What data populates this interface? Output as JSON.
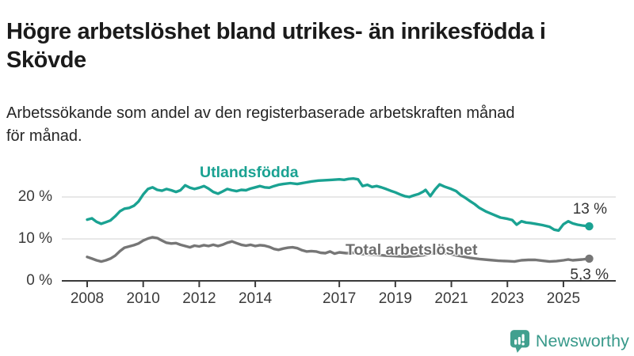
{
  "page": {
    "title": "Högre arbetslöshet bland utrikes- än inrikesfödda i\nSkövde",
    "subtitle": "Arbetssökande som andel av den registerbaserade arbetskraften månad\nför månad."
  },
  "logo": {
    "text": "Newsworthy",
    "icon": "newsworthy-speech-bubble-bar-chart-icon"
  },
  "colors": {
    "accent_teal": "#1aa292",
    "series_gray": "#767676",
    "gray_label": "#6d6d6d",
    "value_label": "#333333",
    "axis": "#3a3a3a",
    "grid": "#d9d9d9",
    "logo_teal": "#41a08f",
    "logo_text_teal": "#38998a"
  },
  "chart_data": {
    "type": "line",
    "title": "Högre arbetslöshet bland utrikes- än inrikesfödda i Skövde",
    "subtitle": "Arbetssökande som andel av den registerbaserade arbetskraften månad för månad.",
    "unit": "%",
    "grid": "horizontal",
    "legend_position": "inline-labels-on-lines",
    "x_range": [
      2008,
      2026
    ],
    "ylim": [
      0,
      26
    ],
    "y_axis": {
      "ticks": [
        {
          "value": 0,
          "label": "0 %"
        },
        {
          "value": 10,
          "label": "10 %"
        },
        {
          "value": 20,
          "label": "20 %"
        }
      ]
    },
    "x_axis": {
      "ticks": [
        {
          "year": 2008,
          "label": "2008"
        },
        {
          "year": 2010,
          "label": "2010"
        },
        {
          "year": 2012,
          "label": "2012"
        },
        {
          "year": 2014,
          "label": "2014"
        },
        {
          "year": 2017,
          "label": "2017"
        },
        {
          "year": 2019,
          "label": "2019"
        },
        {
          "year": 2021,
          "label": "2021"
        },
        {
          "year": 2023,
          "label": "2023"
        },
        {
          "year": 2025,
          "label": "2025"
        }
      ]
    },
    "series": [
      {
        "name": "Utlandsfödda",
        "slug": "utlandsfodda",
        "color": "#1aa292",
        "label_color": "#1aa292",
        "end_label": "13 %",
        "end_value": 13.0,
        "points": [
          [
            2008.0,
            14.6
          ],
          [
            2008.17,
            14.9
          ],
          [
            2008.33,
            14.1
          ],
          [
            2008.5,
            13.6
          ],
          [
            2008.67,
            14.0
          ],
          [
            2008.83,
            14.4
          ],
          [
            2009.0,
            15.4
          ],
          [
            2009.17,
            16.6
          ],
          [
            2009.33,
            17.2
          ],
          [
            2009.5,
            17.4
          ],
          [
            2009.67,
            17.9
          ],
          [
            2009.83,
            18.9
          ],
          [
            2010.0,
            20.6
          ],
          [
            2010.17,
            21.9
          ],
          [
            2010.33,
            22.3
          ],
          [
            2010.5,
            21.7
          ],
          [
            2010.67,
            21.5
          ],
          [
            2010.83,
            21.9
          ],
          [
            2011.0,
            21.6
          ],
          [
            2011.17,
            21.2
          ],
          [
            2011.33,
            21.6
          ],
          [
            2011.5,
            22.8
          ],
          [
            2011.67,
            22.2
          ],
          [
            2011.83,
            21.9
          ],
          [
            2012.0,
            22.2
          ],
          [
            2012.17,
            22.6
          ],
          [
            2012.33,
            22.0
          ],
          [
            2012.5,
            21.2
          ],
          [
            2012.67,
            20.8
          ],
          [
            2012.83,
            21.3
          ],
          [
            2013.0,
            21.9
          ],
          [
            2013.17,
            21.6
          ],
          [
            2013.33,
            21.4
          ],
          [
            2013.5,
            21.7
          ],
          [
            2013.67,
            21.6
          ],
          [
            2013.83,
            22.0
          ],
          [
            2014.0,
            22.3
          ],
          [
            2014.17,
            22.6
          ],
          [
            2014.33,
            22.3
          ],
          [
            2014.5,
            22.2
          ],
          [
            2014.67,
            22.6
          ],
          [
            2014.83,
            22.9
          ],
          [
            2015.0,
            23.1
          ],
          [
            2015.25,
            23.3
          ],
          [
            2015.5,
            23.1
          ],
          [
            2015.75,
            23.4
          ],
          [
            2016.0,
            23.7
          ],
          [
            2016.25,
            23.9
          ],
          [
            2016.5,
            24.0
          ],
          [
            2016.75,
            24.1
          ],
          [
            2017.0,
            24.2
          ],
          [
            2017.17,
            24.1
          ],
          [
            2017.33,
            24.3
          ],
          [
            2017.5,
            24.4
          ],
          [
            2017.67,
            24.2
          ],
          [
            2017.83,
            22.6
          ],
          [
            2018.0,
            22.9
          ],
          [
            2018.17,
            22.4
          ],
          [
            2018.33,
            22.6
          ],
          [
            2018.5,
            22.3
          ],
          [
            2018.67,
            21.9
          ],
          [
            2018.83,
            21.5
          ],
          [
            2019.0,
            21.1
          ],
          [
            2019.17,
            20.6
          ],
          [
            2019.33,
            20.2
          ],
          [
            2019.5,
            20.0
          ],
          [
            2019.67,
            20.4
          ],
          [
            2019.83,
            20.7
          ],
          [
            2020.0,
            21.3
          ],
          [
            2020.08,
            21.7
          ],
          [
            2020.25,
            20.2
          ],
          [
            2020.42,
            21.8
          ],
          [
            2020.58,
            23.0
          ],
          [
            2020.75,
            22.5
          ],
          [
            2021.0,
            21.9
          ],
          [
            2021.17,
            21.4
          ],
          [
            2021.33,
            20.5
          ],
          [
            2021.5,
            19.8
          ],
          [
            2021.67,
            19.0
          ],
          [
            2021.83,
            18.3
          ],
          [
            2022.0,
            17.4
          ],
          [
            2022.25,
            16.5
          ],
          [
            2022.5,
            15.8
          ],
          [
            2022.75,
            15.1
          ],
          [
            2023.0,
            14.8
          ],
          [
            2023.17,
            14.5
          ],
          [
            2023.33,
            13.4
          ],
          [
            2023.5,
            14.2
          ],
          [
            2023.67,
            13.9
          ],
          [
            2023.83,
            13.8
          ],
          [
            2024.0,
            13.6
          ],
          [
            2024.25,
            13.3
          ],
          [
            2024.5,
            12.9
          ],
          [
            2024.67,
            12.2
          ],
          [
            2024.83,
            12.0
          ],
          [
            2025.0,
            13.5
          ],
          [
            2025.17,
            14.2
          ],
          [
            2025.33,
            13.7
          ],
          [
            2025.5,
            13.4
          ],
          [
            2025.67,
            13.2
          ],
          [
            2025.92,
            13.0
          ]
        ]
      },
      {
        "name": "Total arbetslöshet",
        "slug": "total-arbetsloshet",
        "color": "#767676",
        "label_color": "#6d6d6d",
        "end_label": "5,3 %",
        "end_value": 5.3,
        "points": [
          [
            2008.0,
            5.7
          ],
          [
            2008.17,
            5.3
          ],
          [
            2008.33,
            4.9
          ],
          [
            2008.5,
            4.6
          ],
          [
            2008.67,
            4.9
          ],
          [
            2008.83,
            5.3
          ],
          [
            2009.0,
            6.0
          ],
          [
            2009.17,
            7.1
          ],
          [
            2009.33,
            7.9
          ],
          [
            2009.5,
            8.2
          ],
          [
            2009.67,
            8.5
          ],
          [
            2009.83,
            8.9
          ],
          [
            2010.0,
            9.6
          ],
          [
            2010.17,
            10.1
          ],
          [
            2010.33,
            10.4
          ],
          [
            2010.5,
            10.2
          ],
          [
            2010.67,
            9.6
          ],
          [
            2010.83,
            9.1
          ],
          [
            2011.0,
            8.9
          ],
          [
            2011.17,
            9.0
          ],
          [
            2011.33,
            8.6
          ],
          [
            2011.5,
            8.3
          ],
          [
            2011.67,
            8.0
          ],
          [
            2011.83,
            8.4
          ],
          [
            2012.0,
            8.2
          ],
          [
            2012.17,
            8.5
          ],
          [
            2012.33,
            8.3
          ],
          [
            2012.5,
            8.6
          ],
          [
            2012.67,
            8.3
          ],
          [
            2012.83,
            8.6
          ],
          [
            2013.0,
            9.1
          ],
          [
            2013.17,
            9.4
          ],
          [
            2013.33,
            9.0
          ],
          [
            2013.5,
            8.6
          ],
          [
            2013.67,
            8.4
          ],
          [
            2013.83,
            8.6
          ],
          [
            2014.0,
            8.3
          ],
          [
            2014.17,
            8.5
          ],
          [
            2014.33,
            8.4
          ],
          [
            2014.5,
            8.1
          ],
          [
            2014.67,
            7.6
          ],
          [
            2014.83,
            7.4
          ],
          [
            2015.0,
            7.7
          ],
          [
            2015.17,
            7.9
          ],
          [
            2015.33,
            8.0
          ],
          [
            2015.5,
            7.8
          ],
          [
            2015.67,
            7.3
          ],
          [
            2015.83,
            7.0
          ],
          [
            2016.0,
            7.1
          ],
          [
            2016.17,
            7.0
          ],
          [
            2016.33,
            6.7
          ],
          [
            2016.5,
            6.6
          ],
          [
            2016.67,
            7.0
          ],
          [
            2016.83,
            6.5
          ],
          [
            2017.0,
            6.8
          ],
          [
            2017.25,
            6.6
          ],
          [
            2017.5,
            6.7
          ],
          [
            2017.75,
            6.4
          ],
          [
            2018.0,
            6.3
          ],
          [
            2018.33,
            6.2
          ],
          [
            2018.67,
            6.0
          ],
          [
            2019.0,
            5.9
          ],
          [
            2019.33,
            5.8
          ],
          [
            2019.67,
            5.9
          ],
          [
            2020.0,
            6.1
          ],
          [
            2020.33,
            6.6
          ],
          [
            2020.58,
            6.8
          ],
          [
            2020.83,
            6.5
          ],
          [
            2021.0,
            6.3
          ],
          [
            2021.33,
            5.9
          ],
          [
            2021.67,
            5.5
          ],
          [
            2022.0,
            5.2
          ],
          [
            2022.33,
            5.0
          ],
          [
            2022.67,
            4.8
          ],
          [
            2023.0,
            4.7
          ],
          [
            2023.25,
            4.6
          ],
          [
            2023.5,
            4.9
          ],
          [
            2023.75,
            5.0
          ],
          [
            2024.0,
            5.0
          ],
          [
            2024.25,
            4.8
          ],
          [
            2024.5,
            4.6
          ],
          [
            2024.75,
            4.7
          ],
          [
            2025.0,
            4.9
          ],
          [
            2025.17,
            5.1
          ],
          [
            2025.33,
            4.9
          ],
          [
            2025.5,
            5.0
          ],
          [
            2025.67,
            5.1
          ],
          [
            2025.92,
            5.3
          ]
        ]
      }
    ]
  }
}
